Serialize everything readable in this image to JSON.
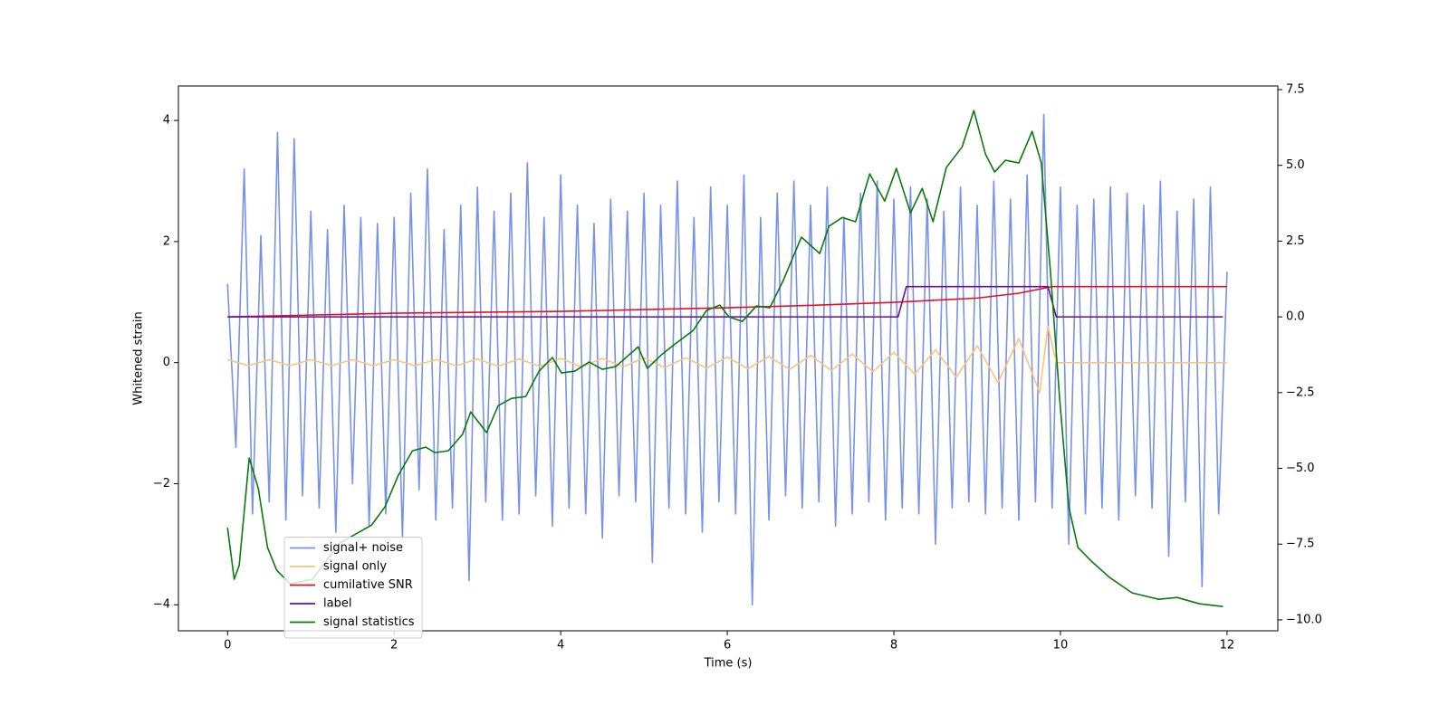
{
  "chart_data": {
    "type": "line",
    "xlabel": "Time (s)",
    "ylabel": "Whitened strain",
    "xlim": [
      -0.59,
      12.61
    ],
    "xticks": [
      0,
      2,
      4,
      6,
      8,
      10,
      12
    ],
    "ylim": [
      -4.43,
      4.57
    ],
    "yticks": [
      {
        "value": -4,
        "label": "−4"
      },
      {
        "value": -2,
        "label": "−2"
      },
      0,
      2,
      4
    ],
    "y2lim": [
      -10.36,
      7.62
    ],
    "y2ticks": [
      {
        "value": -10,
        "label": "−10.0"
      },
      {
        "value": -7.5,
        "label": "−7.5"
      },
      {
        "value": -5,
        "label": "−5.0"
      },
      {
        "value": -2.5,
        "label": "−2.5"
      },
      {
        "value": 0,
        "label": "0.0"
      },
      {
        "value": 2.5,
        "label": "2.5"
      },
      {
        "value": 5,
        "label": "5.0"
      },
      {
        "value": 7.5,
        "label": "7.5"
      }
    ],
    "legend": "lower left",
    "series": [
      {
        "name": "signal+ noise",
        "color": "#7792e8",
        "x": [
          0,
          0.1,
          0.2,
          0.3,
          0.4,
          0.5,
          0.6,
          0.7,
          0.8,
          0.9,
          1,
          1.1,
          1.2,
          1.3,
          1.4,
          1.5,
          1.6,
          1.7,
          1.8,
          1.9,
          2,
          2.1,
          2.2,
          2.3,
          2.4,
          2.5,
          2.6,
          2.7,
          2.8,
          2.9,
          3,
          3.1,
          3.2,
          3.3,
          3.4,
          3.5,
          3.6,
          3.7,
          3.8,
          3.9,
          4,
          4.1,
          4.2,
          4.3,
          4.4,
          4.5,
          4.6,
          4.7,
          4.8,
          4.9,
          5,
          5.1,
          5.2,
          5.3,
          5.4,
          5.5,
          5.6,
          5.7,
          5.8,
          5.9,
          6,
          6.1,
          6.2,
          6.3,
          6.4,
          6.5,
          6.6,
          6.7,
          6.8,
          6.9,
          7,
          7.1,
          7.2,
          7.3,
          7.4,
          7.5,
          7.6,
          7.7,
          7.8,
          7.9,
          8,
          8.1,
          8.2,
          8.3,
          8.4,
          8.5,
          8.6,
          8.7,
          8.8,
          8.9,
          9,
          9.1,
          9.2,
          9.3,
          9.4,
          9.5,
          9.6,
          9.7,
          9.8,
          9.9,
          10,
          10.1,
          10.2,
          10.3,
          10.4,
          10.5,
          10.6,
          10.7,
          10.8,
          10.9,
          11,
          11.1,
          11.2,
          11.3,
          11.4,
          11.5,
          11.6,
          11.7,
          11.8,
          11.9,
          12
        ],
        "values": [
          1.3,
          -1.4,
          3.2,
          -2.5,
          2.1,
          -2.3,
          3.8,
          -2.6,
          3.7,
          -2.2,
          2.5,
          -2.4,
          2.2,
          -2.8,
          2.6,
          -2.0,
          2.4,
          -2.7,
          2.3,
          -2.5,
          2.4,
          -2.9,
          2.8,
          -2.1,
          3.2,
          -2.6,
          2.2,
          -2.4,
          2.6,
          -3.6,
          2.9,
          -2.3,
          2.5,
          -2.6,
          2.8,
          -2.5,
          3.3,
          -2.2,
          2.4,
          -2.7,
          3.1,
          -2.4,
          2.6,
          -2.5,
          2.3,
          -2.9,
          2.7,
          -2.2,
          2.5,
          -2.3,
          2.8,
          -3.3,
          2.6,
          -2.4,
          3.0,
          -2.5,
          2.4,
          -2.8,
          2.9,
          -2.3,
          2.6,
          -2.5,
          3.1,
          -4.0,
          2.4,
          -2.6,
          2.8,
          -2.2,
          3.0,
          -2.4,
          2.6,
          -2.3,
          2.9,
          -2.7,
          2.4,
          -2.5,
          2.8,
          -2.3,
          3.0,
          -2.6,
          2.7,
          -2.4,
          2.9,
          -2.5,
          2.7,
          -3.0,
          2.5,
          -2.4,
          2.9,
          -2.3,
          2.6,
          -2.5,
          3.0,
          -2.4,
          2.7,
          -2.6,
          3.1,
          -2.3,
          4.1,
          -2.4,
          2.9,
          -3.0,
          2.6,
          -2.5,
          2.7,
          -2.4,
          2.9,
          -2.6,
          2.8,
          -2.2,
          2.6,
          -2.4,
          3.0,
          -3.2,
          2.5,
          -2.3,
          2.7,
          -3.7,
          2.9,
          -2.5,
          1.5
        ]
      },
      {
        "name": "signal only",
        "color": "#ffc27a",
        "x": [
          0,
          0.25,
          0.5,
          0.75,
          1,
          1.25,
          1.5,
          1.75,
          2,
          2.25,
          2.5,
          2.75,
          3,
          3.25,
          3.5,
          3.75,
          4,
          4.25,
          4.5,
          4.75,
          5,
          5.25,
          5.5,
          5.75,
          6,
          6.25,
          6.5,
          6.75,
          7,
          7.25,
          7.5,
          7.75,
          8,
          8.25,
          8.5,
          8.75,
          9,
          9.25,
          9.5,
          9.75,
          9.85,
          9.95,
          12
        ],
        "values": [
          0.05,
          -0.05,
          0.05,
          -0.05,
          0.05,
          -0.05,
          0.05,
          -0.05,
          0.05,
          -0.05,
          0.05,
          -0.05,
          0.06,
          -0.06,
          0.06,
          -0.06,
          0.07,
          -0.07,
          0.07,
          -0.07,
          0.08,
          -0.08,
          0.08,
          -0.09,
          0.09,
          -0.1,
          0.1,
          -0.11,
          0.12,
          -0.13,
          0.14,
          -0.15,
          0.17,
          -0.19,
          0.21,
          -0.24,
          0.28,
          -0.33,
          0.4,
          -0.5,
          0.6,
          0,
          0
        ]
      },
      {
        "name": "cumilative SNR",
        "color": "#e8101f",
        "axis": "y2",
        "x": [
          0,
          1,
          2,
          3,
          4,
          5,
          6,
          7,
          8,
          9,
          9.5,
          9.9,
          10,
          12
        ],
        "values": [
          0,
          0.06,
          0.12,
          0.15,
          0.18,
          0.24,
          0.3,
          0.38,
          0.48,
          0.62,
          0.78,
          1.0,
          1.0,
          1.0
        ]
      },
      {
        "name": "label",
        "color": "#6a0f8e",
        "axis": "y2",
        "x": [
          0,
          8.05,
          8.15,
          9.85,
          9.95,
          11.95
        ],
        "values": [
          0,
          0,
          1,
          1,
          0,
          0
        ]
      },
      {
        "name": "signal statistics",
        "color": "#0a7a0a",
        "axis": "y2",
        "x": [
          0,
          0.08,
          0.14,
          0.26,
          0.37,
          0.48,
          0.59,
          0.75,
          1.02,
          1.35,
          1.73,
          1.89,
          2.05,
          2.22,
          2.38,
          2.49,
          2.65,
          2.82,
          2.92,
          3.11,
          3.25,
          3.41,
          3.58,
          3.74,
          3.9,
          4.01,
          4.17,
          4.34,
          4.5,
          4.66,
          4.93,
          5.04,
          5.21,
          5.37,
          5.59,
          5.75,
          5.91,
          6.02,
          6.18,
          6.35,
          6.51,
          6.67,
          6.89,
          7.11,
          7.22,
          7.38,
          7.54,
          7.71,
          7.89,
          8.03,
          8.2,
          8.34,
          8.47,
          8.63,
          8.82,
          8.96,
          9.1,
          9.21,
          9.34,
          9.5,
          9.66,
          9.77,
          9.88,
          9.99,
          10.1,
          10.21,
          10.37,
          10.59,
          10.86,
          11.18,
          11.4,
          11.67,
          11.95
        ],
        "values": [
          -6.96,
          -8.66,
          -8.2,
          -4.66,
          -5.67,
          -7.61,
          -8.36,
          -8.81,
          -8.66,
          -7.46,
          -6.87,
          -6.27,
          -5.23,
          -4.42,
          -4.3,
          -4.48,
          -4.42,
          -3.88,
          -3.14,
          -3.82,
          -2.93,
          -2.69,
          -2.63,
          -1.79,
          -1.34,
          -1.85,
          -1.79,
          -1.49,
          -1.73,
          -1.64,
          -0.99,
          -1.7,
          -1.25,
          -0.9,
          -0.45,
          0.21,
          0.39,
          0,
          -0.15,
          0.36,
          0.3,
          1.19,
          2.63,
          2.09,
          2.99,
          3.28,
          3.14,
          4.72,
          3.82,
          4.9,
          3.43,
          4.24,
          3.14,
          4.93,
          5.61,
          6.81,
          5.37,
          4.78,
          5.17,
          5.08,
          6.12,
          5.08,
          1.49,
          -2.69,
          -6.27,
          -7.61,
          -8.06,
          -8.6,
          -9.11,
          -9.32,
          -9.26,
          -9.47,
          -9.56
        ]
      }
    ]
  }
}
